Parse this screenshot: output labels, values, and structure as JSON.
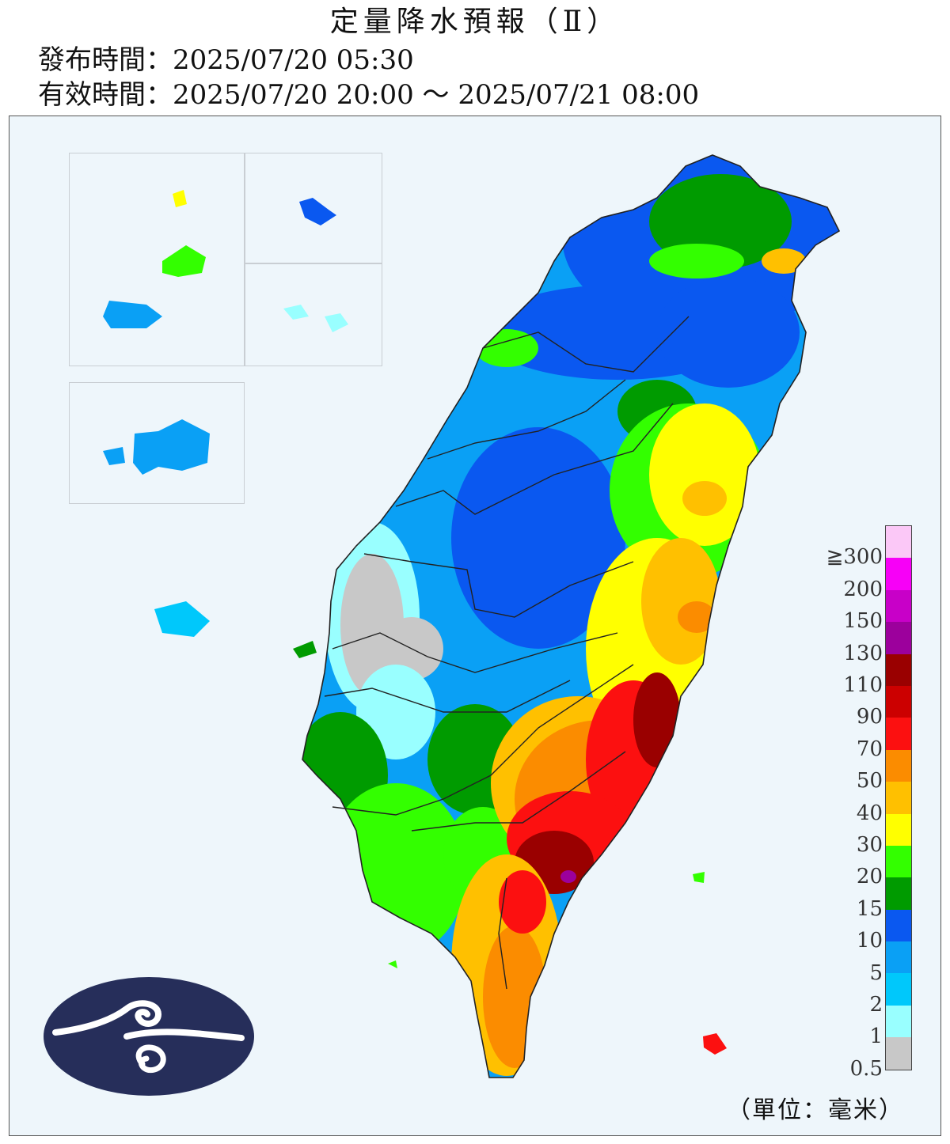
{
  "header": {
    "title": "定量降水預報（Ⅱ）",
    "issue_time": "發布時間：2025/07/20 05:30",
    "valid_time": "有效時間：2025/07/20 20:00 ～ 2025/07/21 08:00"
  },
  "legend": {
    "labels": [
      "≧300",
      "200",
      "150",
      "130",
      "110",
      "90",
      "70",
      "50",
      "40",
      "30",
      "20",
      "15",
      "10",
      "5",
      "2",
      "1",
      "0.5"
    ],
    "colors": [
      "#fbc8f7",
      "#f700f7",
      "#c800c8",
      "#9c009c",
      "#9a0000",
      "#cc0000",
      "#fc1010",
      "#fb8c00",
      "#ffc000",
      "#ffff00",
      "#33ff00",
      "#009b00",
      "#0a58f0",
      "#0aa0f5",
      "#00c8fb",
      "#99ffff",
      "#c8c8c8"
    ],
    "unit": "（單位：毫米）"
  },
  "map_colors": {
    "sea": "#eef6fb",
    "land_base": "#0aa0f5",
    "county_line": "#222222"
  },
  "logo": {
    "name": "weather-agency-logo",
    "background": "#262e5a",
    "foreground": "#ffffff"
  }
}
